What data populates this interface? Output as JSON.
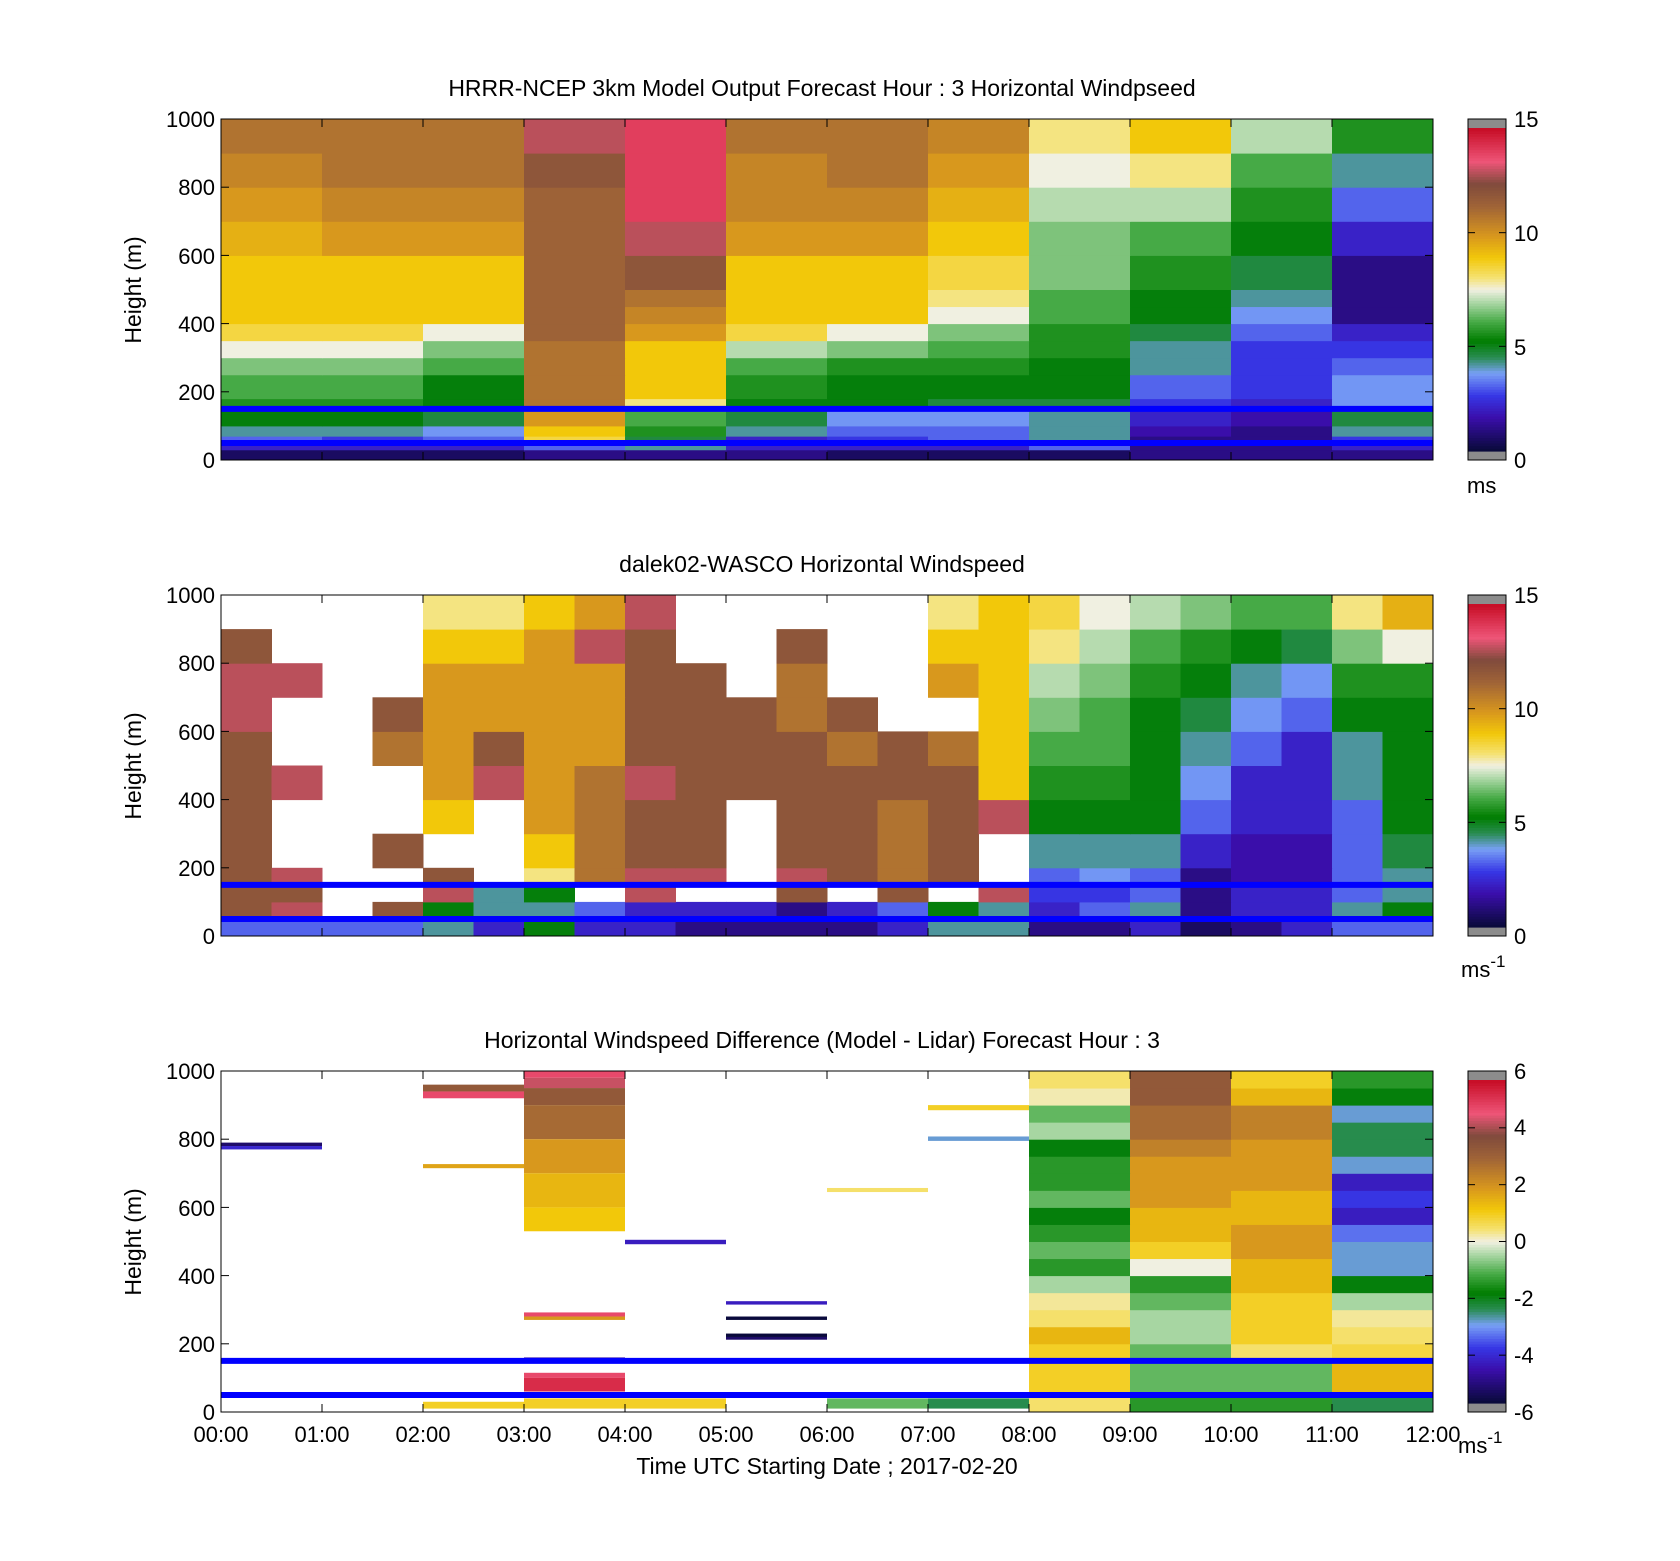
{
  "figure": {
    "xlabel": "Time UTC  Starting Date ; 2017-02-20",
    "x_tick_labels": [
      "00:00",
      "01:00",
      "02:00",
      "03:00",
      "04:00",
      "05:00",
      "06:00",
      "07:00",
      "08:00",
      "09:00",
      "10:00",
      "11:00",
      "12:00"
    ],
    "reference_lines_m": [
      50,
      150
    ],
    "reference_line_color": "#0000ff"
  },
  "chart_data": [
    {
      "type": "heatmap",
      "title": "HRRR-NCEP 3km Model Output   Forecast Hour : 3 Horizontal Windpseed",
      "ylabel": "Height (m)",
      "xlim": [
        0,
        12
      ],
      "ylim": [
        0,
        1000
      ],
      "y_ticks": [
        0,
        200,
        400,
        600,
        800,
        1000
      ],
      "colorbar": {
        "min": 0,
        "max": 15,
        "ticks": [
          0,
          5,
          10,
          15
        ],
        "unit": "ms"
      },
      "x_hours": [
        0,
        1,
        2,
        3,
        4,
        5,
        6,
        7,
        8,
        9,
        10,
        11
      ],
      "levels_m": [
        0,
        30,
        50,
        70,
        100,
        150,
        180,
        250,
        300,
        350,
        400,
        450,
        500,
        600,
        700,
        800,
        900,
        1000
      ],
      "values": [
        [
          0.5,
          0.5,
          0.5,
          1,
          1,
          1,
          0.5,
          0.5,
          0.5,
          1,
          1,
          1
        ],
        [
          2,
          2,
          2,
          3,
          4,
          2,
          2,
          2,
          3,
          1,
          1,
          2
        ],
        [
          3,
          2.5,
          3,
          8.5,
          4.5,
          2,
          2.5,
          3,
          4,
          1,
          1,
          2.5
        ],
        [
          4,
          4,
          3.5,
          9,
          5.5,
          4,
          3,
          3,
          4,
          1.5,
          1,
          4
        ],
        [
          5,
          5,
          4.5,
          10,
          6,
          4.5,
          3.5,
          3.5,
          4,
          2,
          1.5,
          4.5
        ],
        [
          5.5,
          5.5,
          5,
          11,
          8,
          5,
          5,
          4.5,
          4.5,
          2.5,
          2,
          3.5
        ],
        [
          6,
          6,
          5,
          11,
          9,
          5.5,
          5,
          5,
          5,
          3,
          2.5,
          3.5
        ],
        [
          6.5,
          6.5,
          6,
          11,
          9,
          6,
          5.5,
          5.5,
          5,
          4,
          2.5,
          3
        ],
        [
          7.5,
          7.5,
          6.5,
          11,
          9,
          7,
          6.5,
          6,
          5.5,
          4,
          2.5,
          2.5
        ],
        [
          8.5,
          8.5,
          7.5,
          11.5,
          10,
          8.5,
          7.5,
          6.5,
          5.5,
          4.5,
          3,
          2
        ],
        [
          9,
          9,
          9,
          11.5,
          10.5,
          9,
          9,
          7.5,
          6,
          5,
          3.5,
          1
        ],
        [
          9,
          9,
          9,
          11.5,
          11,
          9,
          9,
          8,
          6,
          5,
          4,
          1
        ],
        [
          9,
          9,
          9,
          11.5,
          12,
          9,
          9,
          8.5,
          6.5,
          5.5,
          4.5,
          1
        ],
        [
          9.5,
          10,
          10,
          11.5,
          13,
          10,
          10,
          9,
          6.5,
          6,
          5,
          2
        ],
        [
          10,
          10.5,
          10.5,
          11.5,
          14,
          10.5,
          10.5,
          9.5,
          7,
          7,
          5.5,
          3
        ],
        [
          10.5,
          11,
          11,
          12,
          14,
          10.5,
          11,
          10,
          7.5,
          8,
          6,
          4
        ],
        [
          11,
          11,
          11,
          13,
          14,
          11,
          11,
          10.5,
          8,
          9,
          7,
          5.5
        ]
      ]
    },
    {
      "type": "heatmap",
      "title": "dalek02-WASCO  Horizontal Windspeed",
      "ylabel": "Height (m)",
      "xlim": [
        0,
        12
      ],
      "ylim": [
        0,
        1000
      ],
      "y_ticks": [
        0,
        200,
        400,
        600,
        800,
        1000
      ],
      "colorbar": {
        "min": 0,
        "max": 15,
        "ticks": [
          0,
          5,
          10,
          15
        ],
        "unit": "ms-1"
      },
      "x_hours": [
        0,
        0.5,
        1,
        1.5,
        2,
        2.5,
        3,
        3.5,
        4,
        4.5,
        5,
        5.5,
        6,
        6.5,
        7,
        7.5,
        8,
        8.5,
        9,
        9.5,
        10,
        10.5,
        11,
        11.5
      ],
      "levels_m": [
        0,
        50,
        100,
        150,
        200,
        300,
        400,
        500,
        600,
        700,
        800,
        900,
        1000
      ],
      "values": [
        [
          3,
          3,
          3,
          3,
          4,
          2,
          5,
          2,
          2,
          1,
          1,
          1,
          1,
          2,
          4,
          4,
          1,
          1,
          2,
          0.5,
          1,
          2,
          3,
          3
        ],
        [
          12,
          13,
          null,
          12,
          5,
          4,
          4,
          3,
          2,
          2,
          2,
          1,
          2,
          3,
          5,
          4,
          2,
          3,
          4,
          1,
          2,
          2,
          4,
          5
        ],
        [
          12,
          12,
          null,
          null,
          13,
          4,
          5,
          null,
          13,
          null,
          null,
          12,
          null,
          12,
          null,
          13,
          2.5,
          2.5,
          3,
          1,
          2,
          2,
          3,
          4
        ],
        [
          12,
          13,
          null,
          null,
          12,
          null,
          8,
          11,
          13,
          13,
          null,
          13,
          12,
          11,
          12,
          null,
          3,
          3.5,
          3,
          1,
          1.5,
          1.5,
          3,
          4
        ],
        [
          12,
          null,
          null,
          12,
          null,
          null,
          9,
          11,
          12,
          12,
          null,
          12,
          12,
          11,
          12,
          null,
          4,
          4,
          4,
          2,
          1.5,
          1.5,
          3,
          4.5
        ],
        [
          12,
          null,
          null,
          null,
          9,
          null,
          10,
          11,
          12,
          12,
          null,
          12,
          12,
          11,
          12,
          13,
          5,
          5,
          5,
          3,
          2,
          2,
          3,
          5
        ],
        [
          12,
          13,
          null,
          null,
          10,
          13,
          10,
          11,
          13,
          12,
          12,
          12,
          12,
          12,
          12,
          9,
          5.5,
          5.5,
          5,
          3.5,
          2,
          2,
          4,
          5
        ],
        [
          12,
          null,
          null,
          11,
          10,
          12,
          10,
          10,
          12,
          12,
          12,
          12,
          11,
          12,
          11,
          9,
          6,
          6,
          5,
          4,
          3,
          2,
          4,
          5
        ],
        [
          13,
          null,
          null,
          12,
          10,
          10,
          10,
          10,
          12,
          12,
          12,
          11,
          12,
          null,
          null,
          9,
          6.5,
          6,
          5,
          4.5,
          3.5,
          3,
          5,
          5
        ],
        [
          13,
          13,
          null,
          null,
          10,
          10,
          10,
          10,
          12,
          12,
          null,
          11,
          null,
          null,
          10,
          9,
          7,
          6.5,
          5.5,
          5,
          4,
          3.5,
          5.5,
          5.5
        ],
        [
          12,
          null,
          null,
          null,
          9,
          9,
          10,
          13,
          12,
          null,
          null,
          12,
          null,
          null,
          9,
          9,
          8,
          7,
          6,
          5.5,
          5,
          4.5,
          6.5,
          7.5
        ],
        [
          null,
          null,
          null,
          null,
          8,
          8,
          9,
          10,
          13,
          null,
          null,
          null,
          null,
          null,
          8,
          9,
          8.5,
          7.5,
          7,
          6.5,
          6,
          6,
          8,
          9.5
        ]
      ]
    },
    {
      "type": "heatmap",
      "title": "Horizontal Windspeed Difference (Model - Lidar) Forecast Hour : 3",
      "ylabel": "Height (m)",
      "xlim": [
        0,
        12
      ],
      "ylim": [
        0,
        1000
      ],
      "y_ticks": [
        0,
        200,
        400,
        600,
        800,
        1000
      ],
      "colorbar": {
        "min": -6,
        "max": 6,
        "ticks": [
          -6,
          -4,
          -2,
          0,
          2,
          4,
          6
        ],
        "unit": "ms-1"
      },
      "segments": [
        {
          "x0": 0,
          "x1": 1,
          "y0": 780,
          "y1": 790,
          "v": -5.5
        },
        {
          "x0": 0,
          "x1": 1,
          "y0": 770,
          "y1": 780,
          "v": -4.3
        },
        {
          "x0": 2,
          "x1": 3,
          "y0": 940,
          "y1": 960,
          "v": 3.5
        },
        {
          "x0": 2,
          "x1": 3,
          "y0": 920,
          "y1": 940,
          "v": 5
        },
        {
          "x0": 2,
          "x1": 3,
          "y0": 715,
          "y1": 727,
          "v": 1.8
        },
        {
          "x0": 2,
          "x1": 3,
          "y0": 10,
          "y1": 30,
          "v": 1
        },
        {
          "x0": 3,
          "x1": 4,
          "y0": 980,
          "y1": 1000,
          "v": 5
        },
        {
          "x0": 3,
          "x1": 4,
          "y0": 950,
          "y1": 980,
          "v": 4.5
        },
        {
          "x0": 3,
          "x1": 4,
          "y0": 900,
          "y1": 950,
          "v": 3.5
        },
        {
          "x0": 3,
          "x1": 4,
          "y0": 800,
          "y1": 900,
          "v": 3
        },
        {
          "x0": 3,
          "x1": 4,
          "y0": 700,
          "y1": 800,
          "v": 2
        },
        {
          "x0": 3,
          "x1": 4,
          "y0": 600,
          "y1": 700,
          "v": 1.5
        },
        {
          "x0": 3,
          "x1": 4,
          "y0": 530,
          "y1": 600,
          "v": 1.2
        },
        {
          "x0": 3,
          "x1": 4,
          "y0": 280,
          "y1": 292,
          "v": 5
        },
        {
          "x0": 3,
          "x1": 4,
          "y0": 270,
          "y1": 280,
          "v": 2
        },
        {
          "x0": 3,
          "x1": 4,
          "y0": 155,
          "y1": 160,
          "v": -5
        },
        {
          "x0": 3,
          "x1": 4,
          "y0": 100,
          "y1": 115,
          "v": 5
        },
        {
          "x0": 3,
          "x1": 4,
          "y0": 60,
          "y1": 100,
          "v": 5.5
        },
        {
          "x0": 3,
          "x1": 4,
          "y0": 10,
          "y1": 40,
          "v": 1
        },
        {
          "x0": 4,
          "x1": 5,
          "y0": 492,
          "y1": 505,
          "v": -4.5
        },
        {
          "x0": 4,
          "x1": 5,
          "y0": 10,
          "y1": 40,
          "v": 1
        },
        {
          "x0": 5,
          "x1": 6,
          "y0": 315,
          "y1": 325,
          "v": -4.5
        },
        {
          "x0": 5,
          "x1": 6,
          "y0": 270,
          "y1": 280,
          "v": -6
        },
        {
          "x0": 5,
          "x1": 6,
          "y0": 220,
          "y1": 230,
          "v": -6
        },
        {
          "x0": 5,
          "x1": 6,
          "y0": 212,
          "y1": 220,
          "v": -5.5
        },
        {
          "x0": 6,
          "x1": 7,
          "y0": 645,
          "y1": 657,
          "v": 0.5
        },
        {
          "x0": 6,
          "x1": 7,
          "y0": 10,
          "y1": 40,
          "v": -1
        },
        {
          "x0": 7,
          "x1": 8,
          "y0": 885,
          "y1": 900,
          "v": 1
        },
        {
          "x0": 7,
          "x1": 8,
          "y0": 795,
          "y1": 808,
          "v": -3
        },
        {
          "x0": 7,
          "x1": 8,
          "y0": 10,
          "y1": 40,
          "v": -2.5
        }
      ],
      "x_hours": [
        8,
        9,
        10,
        11
      ],
      "levels_m": [
        0,
        50,
        150,
        200,
        250,
        300,
        350,
        400,
        450,
        500,
        550,
        600,
        650,
        700,
        750,
        800,
        850,
        900,
        950,
        1000
      ],
      "values": [
        [
          0.5,
          -1.5,
          -1.5,
          -2.5
        ],
        [
          1,
          -1,
          -1,
          1.5
        ],
        [
          1,
          -1,
          0.5,
          0.8
        ],
        [
          1.5,
          -0.5,
          1,
          0.5
        ],
        [
          0.5,
          -0.5,
          1,
          0.3
        ],
        [
          0.3,
          -1,
          1,
          -0.5
        ],
        [
          -0.5,
          -1.5,
          1.5,
          -2
        ],
        [
          -1.5,
          0,
          1.5,
          -3
        ],
        [
          -1,
          1,
          2,
          -3
        ],
        [
          -1.5,
          1.5,
          2,
          -3.5
        ],
        [
          -2,
          1.5,
          1.5,
          -4.5
        ],
        [
          -1,
          2,
          1.5,
          -4
        ],
        [
          -1.5,
          2,
          2,
          -4.5
        ],
        [
          -1.5,
          2,
          2,
          -3
        ],
        [
          -2,
          2.5,
          2,
          -2.5
        ],
        [
          -0.5,
          3,
          2.5,
          -2.5
        ],
        [
          -1,
          3,
          2.5,
          -3
        ],
        [
          0.2,
          3.5,
          1.5,
          -2
        ],
        [
          0.5,
          3.5,
          1,
          -1.5
        ]
      ]
    }
  ]
}
